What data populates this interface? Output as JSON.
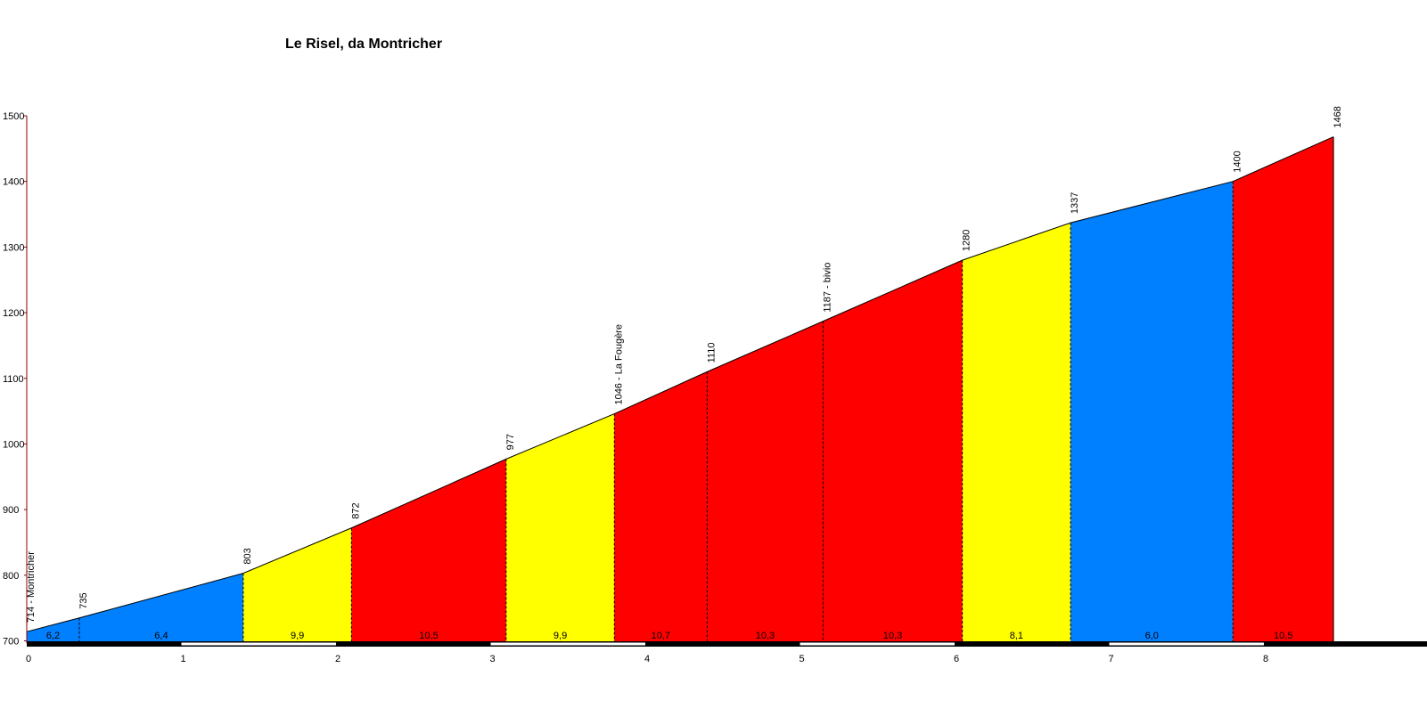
{
  "chart_data": {
    "type": "area",
    "title": "Le Risel, da Montricher",
    "xlabel": "",
    "ylabel": "",
    "xlim": [
      0,
      8.85
    ],
    "ylim": [
      700,
      1500
    ],
    "x_ticks": [
      0,
      1,
      2,
      3,
      4,
      5,
      6,
      7,
      8
    ],
    "y_ticks": [
      700,
      800,
      900,
      1000,
      1100,
      1200,
      1300,
      1400,
      1500
    ],
    "points": [
      {
        "x": 0.0,
        "y": 714,
        "label": "714 - Montricher"
      },
      {
        "x": 0.34,
        "y": 735,
        "label": "735"
      },
      {
        "x": 1.4,
        "y": 803,
        "label": "803"
      },
      {
        "x": 2.1,
        "y": 872,
        "label": "872"
      },
      {
        "x": 3.1,
        "y": 977,
        "label": "977"
      },
      {
        "x": 3.8,
        "y": 1046,
        "label": "1046 - La Fougère"
      },
      {
        "x": 4.4,
        "y": 1110,
        "label": "1110"
      },
      {
        "x": 5.15,
        "y": 1187,
        "label": "1187 - bivio"
      },
      {
        "x": 6.05,
        "y": 1280,
        "label": "1280"
      },
      {
        "x": 6.75,
        "y": 1337,
        "label": "1337"
      },
      {
        "x": 7.8,
        "y": 1400,
        "label": "1400"
      },
      {
        "x": 8.45,
        "y": 1468,
        "label": "1468"
      }
    ],
    "segments": [
      {
        "gradient": "6,2",
        "color": "#0080ff"
      },
      {
        "gradient": "6,4",
        "color": "#0080ff"
      },
      {
        "gradient": "9,9",
        "color": "#ffff00"
      },
      {
        "gradient": "10,5",
        "color": "#ff0000"
      },
      {
        "gradient": "9,9",
        "color": "#ffff00"
      },
      {
        "gradient": "10,7",
        "color": "#ff0000"
      },
      {
        "gradient": "10,3",
        "color": "#ff0000"
      },
      {
        "gradient": "10,3",
        "color": "#ff0000"
      },
      {
        "gradient": "8,1",
        "color": "#ffff00"
      },
      {
        "gradient": "6,0",
        "color": "#0080ff"
      },
      {
        "gradient": "10,5",
        "color": "#ff0000"
      }
    ],
    "axis_color": "#8b0000",
    "grid": false
  }
}
